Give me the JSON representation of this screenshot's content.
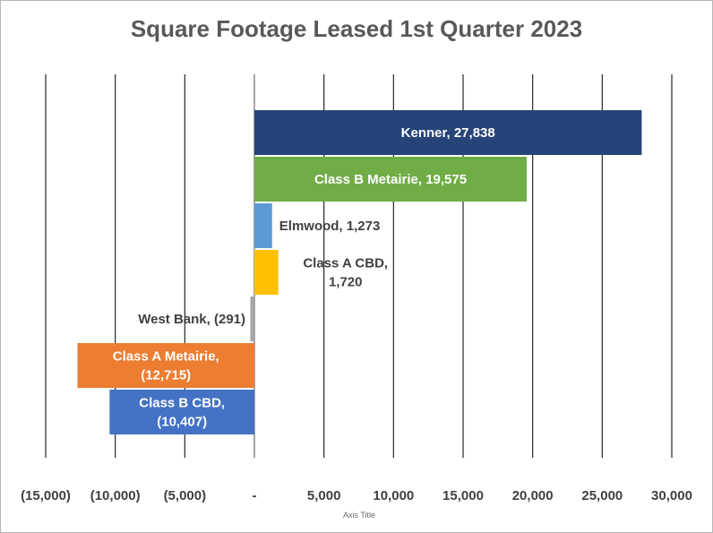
{
  "chart_data": {
    "type": "bar",
    "orientation": "horizontal",
    "title": "Square Footage Leased 1st Quarter 2023",
    "xlabel": "Axis Title",
    "ylabel": "",
    "xlim": [
      -15000,
      30000
    ],
    "x_ticks": [
      -15000,
      -10000,
      -5000,
      0,
      5000,
      10000,
      15000,
      20000,
      25000,
      30000
    ],
    "x_tick_labels": [
      "(15,000)",
      "(10,000)",
      "(5,000)",
      "-",
      "5,000",
      "10,000",
      "15,000",
      "20,000",
      "25,000",
      "30,000"
    ],
    "grid": "vertical major gridlines",
    "legend": "none",
    "categories": [
      "Kenner",
      "Class B Metairie",
      "Elmwood",
      "Class A CBD",
      "West Bank",
      "Class A Metairie",
      "Class B CBD"
    ],
    "values": [
      27838,
      19575,
      1273,
      1720,
      -291,
      -12715,
      -10407
    ],
    "value_labels": [
      "27,838",
      "19,575",
      "1,273",
      "1,720",
      "(291)",
      "(12,715)",
      "(10,407)"
    ],
    "colors": [
      "#264478",
      "#70ad47",
      "#5b9bd5",
      "#ffc000",
      "#a5a5a5",
      "#ed7d31",
      "#4472c4"
    ]
  }
}
